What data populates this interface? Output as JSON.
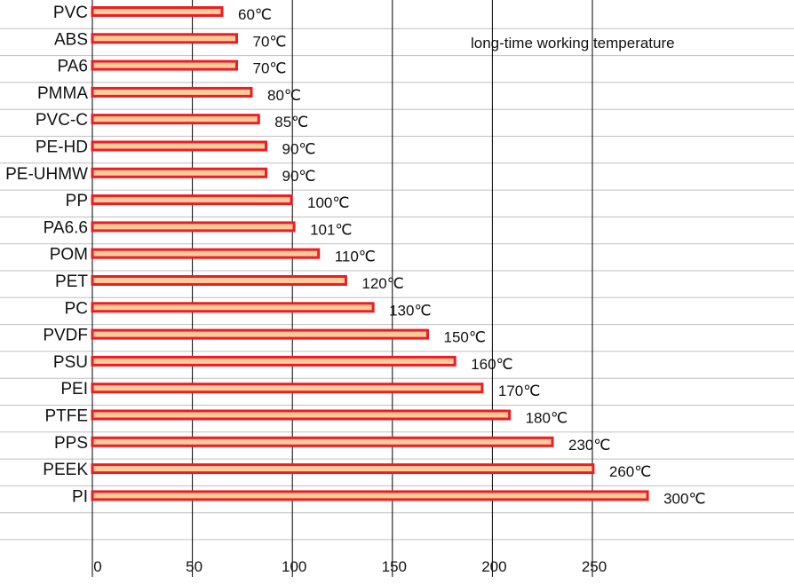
{
  "chart_data": {
    "type": "bar",
    "orientation": "horizontal",
    "categories": [
      "PVC",
      "ABS",
      "PA6",
      "PMMA",
      "PVC-C",
      "PE-HD",
      "PE-UHMW",
      "PP",
      "PA6.6",
      "POM",
      "PET",
      "PC",
      "PVDF",
      "PSU",
      "PEI",
      "PTFE",
      "PPS",
      "PEEK",
      "PI"
    ],
    "values": [
      60,
      70,
      70,
      80,
      85,
      90,
      90,
      100,
      101,
      110,
      120,
      130,
      150,
      160,
      170,
      180,
      230,
      260,
      300
    ],
    "value_labels": [
      "60℃",
      "70℃",
      "70℃",
      "80℃",
      "85℃",
      "90℃",
      "90℃",
      "100℃",
      "101℃",
      "110℃",
      "120℃",
      "130℃",
      "150℃",
      "160℃",
      "170℃",
      "180℃",
      "230℃",
      "260℃",
      "300℃"
    ],
    "annotation": "long-time working temperature",
    "x_ticks": [
      "0",
      "50",
      "100",
      "150",
      "200",
      "250"
    ],
    "grid": true,
    "colors": {
      "bar_fill": "#FFCC99",
      "bar_stroke": "#EE1C24",
      "grid": "#000000",
      "row_line": "#BFBFBF"
    }
  }
}
